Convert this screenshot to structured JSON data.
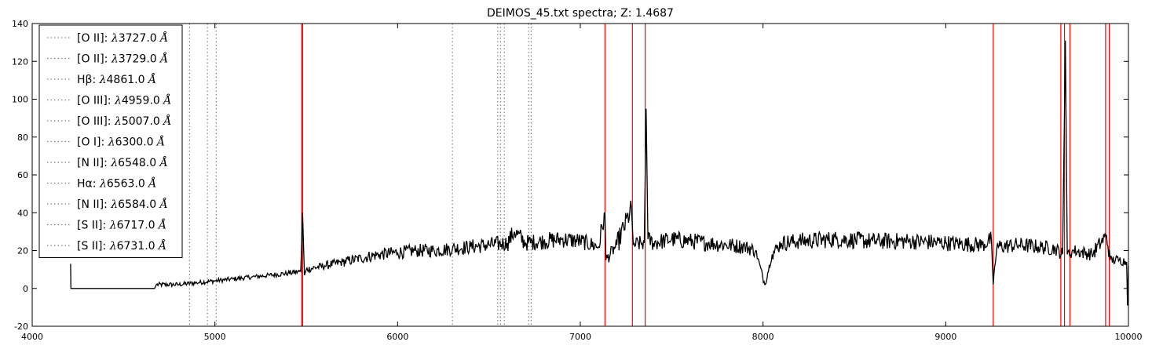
{
  "chart_data": {
    "type": "line",
    "title": "DEIMOS_45.txt spectra; Z: 1.4687",
    "xlabel": "",
    "ylabel": "",
    "xlim": [
      4000,
      10000
    ],
    "ylim": [
      -20,
      140
    ],
    "x_ticks": [
      4000,
      5000,
      6000,
      7000,
      8000,
      9000,
      10000
    ],
    "y_ticks": [
      -20,
      0,
      20,
      40,
      60,
      80,
      100,
      120,
      140
    ],
    "grid": false,
    "legend_position": "top-left",
    "colors": {
      "spectrum": "#000000",
      "emission_lines": "#808080",
      "sky_lines": "#ff0000",
      "axes": "#000000"
    },
    "spectrum_anchors": [
      [
        4210,
        13
      ],
      [
        4212,
        0
      ],
      [
        4670,
        0
      ],
      [
        4680,
        2
      ],
      [
        4800,
        2
      ],
      [
        4900,
        3
      ],
      [
        5000,
        4
      ],
      [
        5100,
        5
      ],
      [
        5200,
        6
      ],
      [
        5300,
        7
      ],
      [
        5400,
        8
      ],
      [
        5470,
        9
      ],
      [
        5480,
        40
      ],
      [
        5490,
        7
      ],
      [
        5500,
        10
      ],
      [
        5600,
        12
      ],
      [
        5700,
        14
      ],
      [
        5800,
        16
      ],
      [
        5900,
        18
      ],
      [
        6000,
        19
      ],
      [
        6100,
        20
      ],
      [
        6200,
        20
      ],
      [
        6300,
        21
      ],
      [
        6400,
        22
      ],
      [
        6500,
        23
      ],
      [
        6600,
        24
      ],
      [
        6640,
        30
      ],
      [
        6700,
        24
      ],
      [
        6800,
        25
      ],
      [
        6900,
        26
      ],
      [
        7000,
        25
      ],
      [
        7100,
        22
      ],
      [
        7135,
        40
      ],
      [
        7140,
        15
      ],
      [
        7200,
        23
      ],
      [
        7280,
        42
      ],
      [
        7290,
        23
      ],
      [
        7350,
        24
      ],
      [
        7360,
        95
      ],
      [
        7370,
        26
      ],
      [
        7400,
        24
      ],
      [
        7500,
        26
      ],
      [
        7600,
        25
      ],
      [
        7700,
        24
      ],
      [
        7800,
        23
      ],
      [
        7900,
        22
      ],
      [
        7960,
        20
      ],
      [
        8010,
        2
      ],
      [
        8050,
        18
      ],
      [
        8100,
        24
      ],
      [
        8200,
        25
      ],
      [
        8400,
        26
      ],
      [
        8600,
        25
      ],
      [
        8800,
        25
      ],
      [
        9000,
        24
      ],
      [
        9200,
        23
      ],
      [
        9250,
        26
      ],
      [
        9260,
        2
      ],
      [
        9280,
        22
      ],
      [
        9400,
        23
      ],
      [
        9500,
        22
      ],
      [
        9600,
        21
      ],
      [
        9640,
        18
      ],
      [
        9655,
        131
      ],
      [
        9665,
        18
      ],
      [
        9700,
        20
      ],
      [
        9800,
        18
      ],
      [
        9880,
        28
      ],
      [
        9900,
        15
      ],
      [
        9950,
        15
      ],
      [
        9990,
        14
      ],
      [
        9995,
        -9
      ],
      [
        10000,
        12
      ]
    ],
    "emission_lines": [
      {
        "label": "[O II]: ",
        "wavelength": "3727.0",
        "x": 3727.0
      },
      {
        "label": "[O II]: ",
        "wavelength": "3729.0",
        "x": 3729.0
      },
      {
        "label": "Hβ: ",
        "wavelength": "4861.0",
        "x": 4861.0
      },
      {
        "label": "[O III]: ",
        "wavelength": "4959.0",
        "x": 4959.0
      },
      {
        "label": "[O III]: ",
        "wavelength": "5007.0",
        "x": 5007.0
      },
      {
        "label": "[O I]: ",
        "wavelength": "6300.0",
        "x": 6300.0
      },
      {
        "label": "[N II]: ",
        "wavelength": "6548.0",
        "x": 6548.0
      },
      {
        "label": "Hα: ",
        "wavelength": "6563.0",
        "x": 6563.0
      },
      {
        "label": "[N II]: ",
        "wavelength": "6584.0",
        "x": 6584.0
      },
      {
        "label": "[S II]: ",
        "wavelength": "6717.0",
        "x": 6717.0
      },
      {
        "label": "[S II]: ",
        "wavelength": "6731.0",
        "x": 6731.0
      }
    ],
    "sky_lines": [
      5475,
      5480,
      7135,
      7285,
      7355,
      9260,
      9630,
      9650,
      9680,
      9875,
      9895
    ],
    "lambda_symbol": "λ",
    "unit_symbol": "Å"
  }
}
